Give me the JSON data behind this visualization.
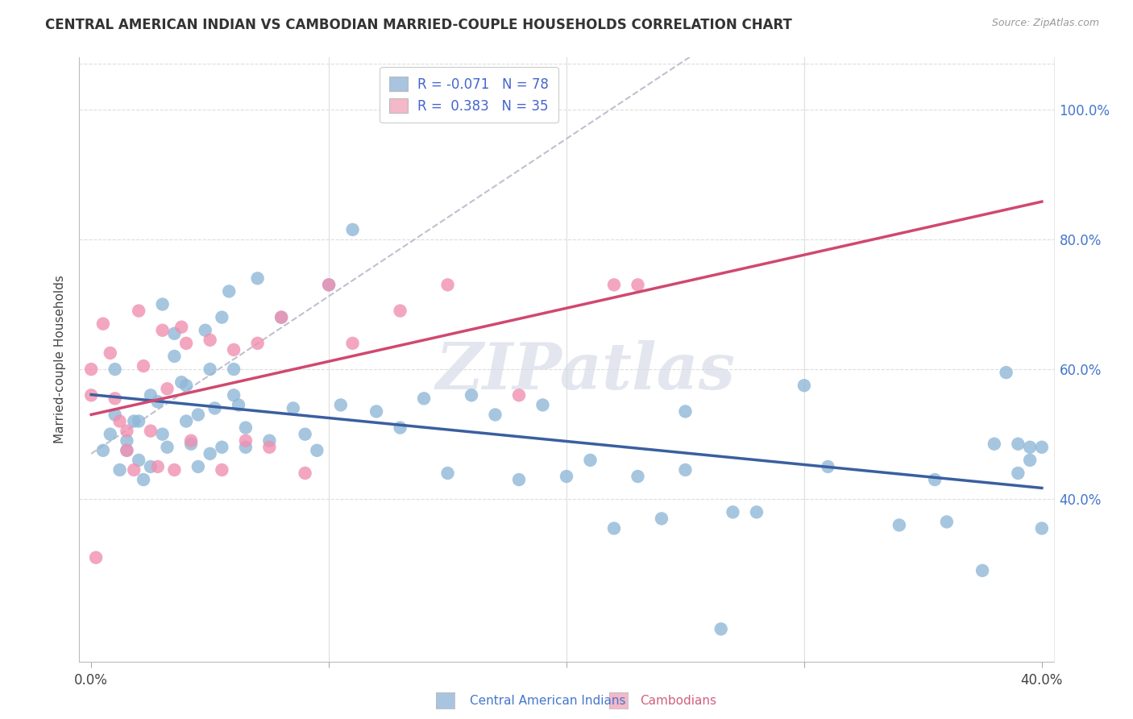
{
  "title": "CENTRAL AMERICAN INDIAN VS CAMBODIAN MARRIED-COUPLE HOUSEHOLDS CORRELATION CHART",
  "source": "Source: ZipAtlas.com",
  "xlabel_blue": "Central American Indians",
  "xlabel_pink": "Cambodians",
  "ylabel": "Married-couple Households",
  "watermark": "ZIPatlas",
  "legend": {
    "blue_R": "-0.071",
    "blue_N": 78,
    "pink_R": "0.383",
    "pink_N": 35
  },
  "blue_legend_color": "#a8c4e0",
  "pink_legend_color": "#f4b8c8",
  "blue_line_color": "#3a5fa0",
  "pink_line_color": "#d04870",
  "blue_dot_color": "#90b8d8",
  "pink_dot_color": "#f090b0",
  "dashed_line_color": "#c0c0d0",
  "xlim": [
    -0.005,
    0.405
  ],
  "ylim": [
    0.15,
    1.08
  ],
  "yticks": [
    0.4,
    0.6,
    0.8,
    1.0
  ],
  "ytick_labels": [
    "40.0%",
    "60.0%",
    "80.0%",
    "100.0%"
  ],
  "xticks": [
    0.0,
    0.1,
    0.2,
    0.3,
    0.4
  ],
  "xtick_labels": [
    "0.0%",
    "",
    "",
    "",
    "40.0%"
  ],
  "blue_x": [
    0.005,
    0.008,
    0.01,
    0.012,
    0.015,
    0.018,
    0.02,
    0.022,
    0.025,
    0.01,
    0.015,
    0.02,
    0.025,
    0.028,
    0.03,
    0.032,
    0.035,
    0.038,
    0.04,
    0.042,
    0.045,
    0.048,
    0.05,
    0.052,
    0.055,
    0.058,
    0.06,
    0.062,
    0.065,
    0.03,
    0.035,
    0.04,
    0.045,
    0.05,
    0.055,
    0.06,
    0.065,
    0.07,
    0.075,
    0.08,
    0.085,
    0.09,
    0.095,
    0.1,
    0.105,
    0.11,
    0.12,
    0.13,
    0.14,
    0.15,
    0.16,
    0.17,
    0.18,
    0.19,
    0.2,
    0.21,
    0.22,
    0.23,
    0.24,
    0.25,
    0.27,
    0.28,
    0.3,
    0.31,
    0.34,
    0.355,
    0.36,
    0.375,
    0.385,
    0.39,
    0.395,
    0.4,
    0.4,
    0.39,
    0.25,
    0.265,
    0.38,
    0.395
  ],
  "blue_y": [
    0.475,
    0.5,
    0.53,
    0.445,
    0.49,
    0.52,
    0.46,
    0.43,
    0.56,
    0.6,
    0.475,
    0.52,
    0.45,
    0.55,
    0.5,
    0.48,
    0.62,
    0.58,
    0.52,
    0.485,
    0.45,
    0.66,
    0.6,
    0.54,
    0.48,
    0.72,
    0.6,
    0.545,
    0.48,
    0.7,
    0.655,
    0.575,
    0.53,
    0.47,
    0.68,
    0.56,
    0.51,
    0.74,
    0.49,
    0.68,
    0.54,
    0.5,
    0.475,
    0.73,
    0.545,
    0.815,
    0.535,
    0.51,
    0.555,
    0.44,
    0.56,
    0.53,
    0.43,
    0.545,
    0.435,
    0.46,
    0.355,
    0.435,
    0.37,
    0.445,
    0.38,
    0.38,
    0.575,
    0.45,
    0.36,
    0.43,
    0.365,
    0.29,
    0.595,
    0.485,
    0.48,
    0.355,
    0.48,
    0.44,
    0.535,
    0.2,
    0.485,
    0.46
  ],
  "pink_x": [
    0.0,
    0.0,
    0.002,
    0.005,
    0.008,
    0.01,
    0.012,
    0.015,
    0.015,
    0.018,
    0.02,
    0.022,
    0.025,
    0.028,
    0.03,
    0.032,
    0.035,
    0.038,
    0.04,
    0.042,
    0.05,
    0.055,
    0.06,
    0.065,
    0.07,
    0.075,
    0.08,
    0.09,
    0.1,
    0.11,
    0.13,
    0.15,
    0.18,
    0.22,
    0.23
  ],
  "pink_y": [
    0.6,
    0.56,
    0.31,
    0.67,
    0.625,
    0.555,
    0.52,
    0.505,
    0.475,
    0.445,
    0.69,
    0.605,
    0.505,
    0.45,
    0.66,
    0.57,
    0.445,
    0.665,
    0.64,
    0.49,
    0.645,
    0.445,
    0.63,
    0.49,
    0.64,
    0.48,
    0.68,
    0.44,
    0.73,
    0.64,
    0.69,
    0.73,
    0.56,
    0.73,
    0.73
  ]
}
